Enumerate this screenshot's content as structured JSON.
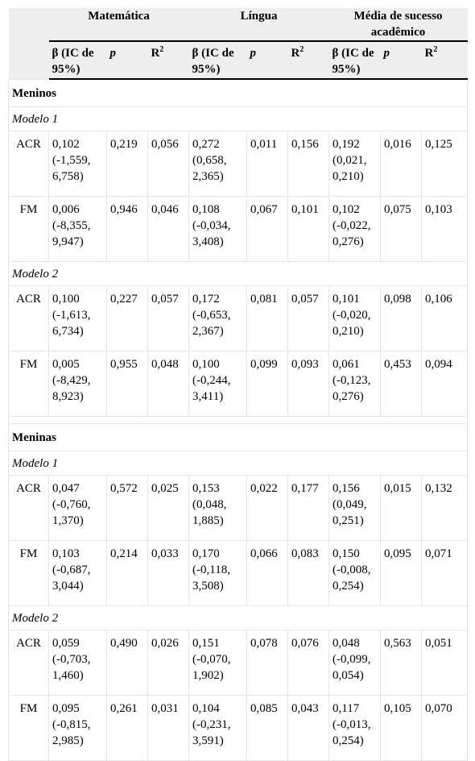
{
  "header": {
    "groups": [
      "Matemática",
      "Língua",
      "Média de sucesso acadêmico"
    ],
    "subheaders": [
      "β (IC de 95%)",
      "p",
      "R",
      "2"
    ]
  },
  "sections": [
    {
      "title": "Meninos",
      "models": [
        {
          "title": "Modelo 1",
          "rows": [
            {
              "label": "ACR",
              "cells": [
                "0,102 (-1,559, 6,758)",
                "0,219",
                "0,056",
                "0,272 (0,658, 2,365)",
                "0,011",
                "0,156",
                "0,192 (0,021, 0,210)",
                "0,016",
                "0,125"
              ]
            },
            {
              "label": "FM",
              "cells": [
                "0,006 (-8,355, 9,947)",
                "0,946",
                "0,046",
                "0,108 (-0,034, 3,408)",
                "0,067",
                "0,101",
                "0,102 (-0,022, 0,276)",
                "0,075",
                "0,103"
              ]
            }
          ]
        },
        {
          "title": "Modelo 2",
          "rows": [
            {
              "label": "ACR",
              "cells": [
                "0,100 (-1,613, 6,734)",
                "0,227",
                "0,057",
                "0,172 (-0,653, 2,367)",
                "0,081",
                "0,057",
                "0,101 (-0,020, 0,210)",
                "0,098",
                "0,106"
              ]
            },
            {
              "label": "FM",
              "cells": [
                "0,005 (-8,429, 8,923)",
                "0,955",
                "0,048",
                "0,100 (-0,244, 3,411)",
                "0,099",
                "0,093",
                "0,061 (-0,123, 0,276)",
                "0,453",
                "0,094"
              ]
            }
          ]
        }
      ]
    },
    {
      "title": "Meninas",
      "models": [
        {
          "title": "Modelo 1",
          "rows": [
            {
              "label": "ACR",
              "cells": [
                "0,047 (-0,760, 1,370)",
                "0,572",
                "0,025",
                "0,153 (0,048, 1,885)",
                "0,022",
                "0,177",
                "0,156 (0,049, 0,251)",
                "0,015",
                "0,132"
              ]
            },
            {
              "label": "FM",
              "cells": [
                "0,103 (-0,687, 3,044)",
                "0,214",
                "0,033",
                "0,170 (-0,118, 3,508)",
                "0,066",
                "0,083",
                "0,150 (-0,008, 0,254)",
                "0,095",
                "0,071"
              ]
            }
          ]
        },
        {
          "title": "Modelo 2",
          "rows": [
            {
              "label": "ACR",
              "cells": [
                "0,059 (-0,703, 1,460)",
                "0,490",
                "0,026",
                "0,151 (-0,070, 1,902)",
                "0,078",
                "0,076",
                "0,048 (-0,099, 0,054)",
                "0,563",
                "0,051"
              ]
            },
            {
              "label": "FM",
              "cells": [
                "0,095 (-0,815, 2,985)",
                "0,261",
                "0,031",
                "0,104 (-0,231, 3,591)",
                "0,085",
                "0,043",
                "0,117 (-0,013, 0,254)",
                "0,105",
                "0,070"
              ]
            }
          ]
        }
      ]
    }
  ]
}
